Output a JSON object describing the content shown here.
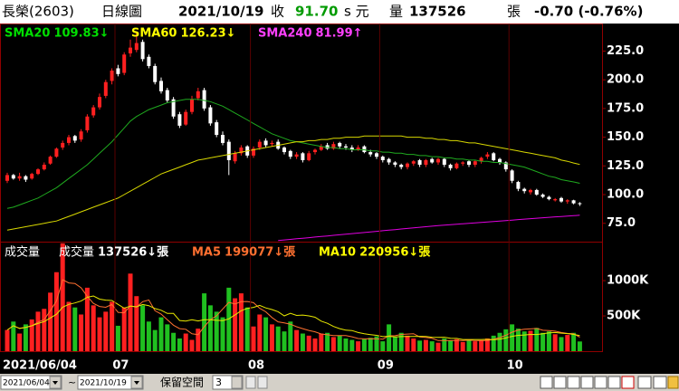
{
  "header": {
    "stock": "長榮(2603)",
    "period": "日線圖",
    "date": "2021/10/19",
    "close_label": "收",
    "close": "91.70",
    "close_suffix": "s 元",
    "volume_label": "量",
    "volume": "137526",
    "volume_unit": "張",
    "change": "-0.70 (-0.76%)"
  },
  "chart_data": [
    {
      "type": "candlestick",
      "up_color": "#ff2020",
      "down_color": "#ffffff",
      "open": [
        112,
        117,
        114,
        116,
        114,
        118,
        122,
        127,
        133,
        141,
        145,
        151,
        148,
        156,
        169,
        176,
        186,
        199,
        210,
        206,
        223,
        226,
        233,
        220,
        212,
        199,
        191,
        183,
        170,
        161,
        172,
        184,
        191,
        176,
        163,
        152,
        146,
        129,
        136,
        142,
        134,
        141,
        147,
        144,
        146,
        141,
        138,
        133,
        136,
        130,
        137,
        139,
        143,
        140,
        145,
        142,
        141,
        139,
        142,
        137,
        136,
        133,
        131,
        128,
        126,
        124,
        127,
        130,
        126,
        131,
        128,
        131,
        126,
        123,
        127,
        129,
        126,
        129,
        133,
        136,
        131,
        128,
        121,
        111,
        105,
        102,
        104,
        100,
        98,
        95,
        97,
        94,
        95,
        92.5
      ],
      "high": [
        119,
        118,
        119,
        117,
        119,
        123,
        128,
        134,
        141,
        147,
        152,
        152,
        157,
        170,
        178,
        188,
        200,
        210,
        213,
        224,
        235,
        241,
        235,
        222,
        214,
        202,
        193,
        185,
        172,
        174,
        186,
        193,
        193,
        178,
        165,
        155,
        148,
        138,
        143,
        143,
        142,
        148,
        149,
        147,
        148,
        142,
        139,
        137,
        137,
        138,
        140,
        144,
        145,
        146,
        146,
        144,
        143,
        143,
        143,
        139,
        137,
        134,
        132,
        129,
        127,
        128,
        130,
        131,
        131,
        132,
        132,
        132,
        127,
        128,
        129,
        130,
        130,
        133,
        137,
        137,
        132,
        129,
        122,
        112,
        106,
        105,
        105,
        101,
        99,
        97,
        98,
        96,
        95.5,
        93.4
      ],
      "low": [
        110,
        113,
        112,
        111,
        113,
        117,
        121,
        126,
        132,
        139,
        143,
        145,
        146,
        154,
        167,
        174,
        184,
        196,
        203,
        204,
        220,
        224,
        216,
        210,
        196,
        188,
        180,
        166,
        158,
        160,
        170,
        182,
        173,
        160,
        150,
        143,
        117,
        127,
        134,
        132,
        132,
        139,
        141,
        142,
        139,
        135,
        131,
        131,
        128,
        129,
        135,
        138,
        139,
        139,
        140,
        139,
        137,
        138,
        136,
        133,
        131,
        128,
        126,
        124,
        122,
        122,
        125,
        124,
        124,
        127,
        126,
        124,
        121,
        122,
        125,
        124,
        124,
        127,
        131,
        129,
        126,
        120,
        110,
        103,
        101,
        100,
        99,
        97,
        95,
        94,
        93,
        92,
        91.5,
        90.1
      ],
      "close": [
        117,
        114,
        116,
        113,
        118,
        122,
        126,
        133,
        140,
        145,
        150,
        147,
        155,
        168,
        176,
        185,
        198,
        208,
        205,
        222,
        228,
        232,
        218,
        212,
        198,
        190,
        182,
        168,
        160,
        172,
        183,
        190,
        175,
        162,
        152,
        145,
        130,
        136,
        141,
        134,
        140,
        146,
        143,
        145,
        140,
        137,
        133,
        135,
        130,
        136,
        139,
        142,
        140,
        144,
        142,
        141,
        139,
        141,
        137,
        135,
        133,
        130,
        128,
        126,
        124,
        127,
        129,
        126,
        130,
        128,
        131,
        126,
        123,
        127,
        128,
        126,
        129,
        132,
        135,
        130,
        128,
        122,
        112,
        105,
        103,
        104,
        100,
        98,
        96,
        96,
        94,
        95,
        92.4,
        91.7
      ],
      "lines": [
        {
          "name": "SMA20",
          "last_label": "109.83↓",
          "color": "#1faa1f",
          "label_color": "#00e000",
          "values": [
            88,
            89,
            91,
            93,
            95,
            97,
            100,
            103,
            106,
            110,
            114,
            118,
            122,
            126,
            131,
            136,
            141,
            146,
            152,
            158,
            164,
            168,
            171,
            174,
            176,
            178,
            180,
            181,
            182,
            183,
            183,
            183,
            182,
            181,
            179,
            177,
            174,
            171,
            168,
            165,
            162,
            159,
            156,
            153,
            151,
            149,
            147,
            146,
            145,
            144,
            143,
            142,
            141,
            141,
            140,
            140,
            139,
            139,
            139,
            138,
            138,
            137,
            137,
            136,
            136,
            135,
            135,
            134,
            134,
            133,
            133,
            132,
            132,
            131,
            131,
            130,
            130,
            129,
            129,
            128,
            128,
            127,
            126,
            125,
            124,
            122,
            120,
            118,
            116,
            115,
            113,
            112,
            111,
            109.83
          ]
        },
        {
          "name": "SMA60",
          "last_label": "126.23↓",
          "color": "#d8d800",
          "label_color": "#ffff00",
          "values": [
            69,
            70,
            71,
            72,
            73,
            74,
            75,
            76,
            77,
            79,
            81,
            83,
            85,
            87,
            89,
            91,
            93,
            95,
            97,
            100,
            103,
            106,
            109,
            112,
            115,
            118,
            120,
            122,
            124,
            126,
            128,
            130,
            131,
            132,
            133,
            134,
            135,
            136,
            137,
            138,
            139,
            140,
            141,
            142,
            143,
            144,
            145,
            146,
            146,
            147,
            147,
            148,
            148,
            149,
            149,
            150,
            150,
            150,
            151,
            151,
            151,
            151,
            151,
            151,
            151,
            150,
            150,
            150,
            149,
            149,
            148,
            148,
            147,
            147,
            146,
            145,
            145,
            144,
            143,
            142,
            141,
            140,
            139,
            138,
            137,
            136,
            135,
            134,
            133,
            132,
            130,
            129,
            127.5,
            126.23
          ]
        },
        {
          "name": "SMA240",
          "last_label": "81.99↑",
          "color": "#e000e0",
          "label_color": "#ff40ff",
          "values": [
            null,
            null,
            null,
            null,
            null,
            null,
            null,
            null,
            null,
            null,
            null,
            null,
            null,
            null,
            null,
            null,
            null,
            null,
            null,
            null,
            null,
            null,
            null,
            null,
            null,
            null,
            null,
            null,
            null,
            null,
            null,
            null,
            null,
            null,
            null,
            null,
            null,
            null,
            null,
            null,
            null,
            null,
            null,
            null,
            60,
            60.5,
            61,
            61.5,
            62,
            62.5,
            63,
            63.5,
            64,
            64.5,
            65,
            65.5,
            66,
            66.5,
            67,
            67.5,
            68,
            68.5,
            69,
            69.5,
            70,
            70.5,
            71,
            71.5,
            72,
            72.5,
            73,
            73.4,
            73.8,
            74.2,
            74.6,
            75,
            75.4,
            75.8,
            76.2,
            76.6,
            77,
            77.4,
            77.8,
            78.2,
            78.6,
            79,
            79.4,
            79.8,
            80.2,
            80.6,
            80.9,
            81.2,
            81.6,
            81.99
          ]
        }
      ],
      "ylim": [
        59,
        249
      ],
      "yticks": [
        {
          "value": 75,
          "label": "75.0"
        },
        {
          "value": 100,
          "label": "100.0"
        },
        {
          "value": 125,
          "label": "125.0"
        },
        {
          "value": 150,
          "label": "150.0"
        },
        {
          "value": 175,
          "label": "175.0"
        },
        {
          "value": 200,
          "label": "200.0"
        },
        {
          "value": 225,
          "label": "225.0"
        }
      ]
    },
    {
      "type": "bar",
      "title": "成交量",
      "name": "成交量",
      "legend_label": "137526↓張",
      "up_color": "#ff2020",
      "down_color": "#20c020",
      "categories": [
        "2021/06/04",
        null,
        null,
        null,
        null,
        null,
        null,
        null,
        null,
        null,
        null,
        null,
        null,
        null,
        null,
        null,
        null,
        null,
        "07",
        null,
        null,
        null,
        null,
        null,
        null,
        null,
        null,
        null,
        null,
        null,
        null,
        null,
        null,
        null,
        null,
        null,
        null,
        null,
        null,
        null,
        "08",
        null,
        null,
        null,
        null,
        null,
        null,
        null,
        null,
        null,
        null,
        null,
        null,
        null,
        null,
        null,
        null,
        null,
        null,
        null,
        null,
        "09",
        null,
        null,
        null,
        null,
        null,
        null,
        null,
        null,
        null,
        null,
        null,
        null,
        null,
        null,
        null,
        null,
        null,
        null,
        null,
        null,
        "10",
        null,
        null,
        null,
        null,
        null,
        null,
        null,
        null,
        null,
        null,
        null
      ],
      "values": [
        300000,
        420000,
        250000,
        380000,
        450000,
        560000,
        600000,
        830000,
        1120000,
        1530000,
        700000,
        620000,
        520000,
        900000,
        650000,
        480000,
        560000,
        700000,
        360000,
        620000,
        1100000,
        780000,
        650000,
        420000,
        300000,
        480000,
        380000,
        260000,
        180000,
        250000,
        160000,
        320000,
        820000,
        650000,
        560000,
        480000,
        900000,
        750000,
        820000,
        620000,
        350000,
        520000,
        480000,
        380000,
        350000,
        280000,
        420000,
        300000,
        250000,
        220000,
        180000,
        250000,
        260000,
        200000,
        220000,
        180000,
        160000,
        140000,
        170000,
        190000,
        210000,
        140000,
        380000,
        200000,
        260000,
        220000,
        180000,
        150000,
        160000,
        140000,
        120000,
        180000,
        150000,
        170000,
        130000,
        160000,
        140000,
        150000,
        180000,
        220000,
        260000,
        310000,
        380000,
        320000,
        280000,
        290000,
        330000,
        260000,
        280000,
        240000,
        200000,
        230000,
        260000,
        137526
      ],
      "lines": [
        {
          "name": "MA5",
          "last_label": "199077↓張",
          "color": "#ff7030",
          "label_color": "#ff7030",
          "values": [
            300000,
            360000,
            323000,
            338000,
            360000,
            412000,
            448000,
            574000,
            712000,
            1014000,
            968000,
            960000,
            898000,
            778000,
            678000,
            634000,
            622000,
            662000,
            550000,
            544000,
            644000,
            624000,
            702000,
            726000,
            574000,
            526000,
            446000,
            368000,
            320000,
            310000,
            246000,
            234000,
            346000,
            446000,
            502000,
            598000,
            692000,
            668000,
            702000,
            704000,
            688000,
            608000,
            558000,
            478000,
            416000,
            402000,
            382000,
            346000,
            320000,
            294000,
            274000,
            244000,
            232000,
            222000,
            222000,
            222000,
            204000,
            180000,
            174000,
            176000,
            174000,
            170000,
            218000,
            220000,
            238000,
            242000,
            248000,
            202000,
            194000,
            182000,
            150000,
            150000,
            150000,
            152000,
            150000,
            158000,
            150000,
            150000,
            152000,
            170000,
            192000,
            226000,
            270000,
            298000,
            310000,
            316000,
            322000,
            296000,
            292000,
            284000,
            264000,
            252000,
            246000,
            199077
          ]
        },
        {
          "name": "MA10",
          "last_label": "220956↓張",
          "color": "#e8e800",
          "label_color": "#ffff00",
          "values": [
            300000,
            360000,
            323000,
            338000,
            360000,
            393000,
            420000,
            471000,
            523000,
            624000,
            664000,
            684000,
            711000,
            763000,
            783000,
            738000,
            724000,
            719000,
            663000,
            610000,
            639000,
            629000,
            662000,
            645000,
            604000,
            580000,
            535000,
            535000,
            435000,
            427000,
            445000,
            429000,
            446000,
            447000,
            438000,
            434000,
            458000,
            514000,
            574000,
            607000,
            621000,
            650000,
            613000,
            590000,
            560000,
            500000,
            537000,
            507000,
            512000,
            500000,
            481000,
            426000,
            395000,
            350000,
            319000,
            298000,
            293000,
            264000,
            247000,
            235000,
            224000,
            207000,
            211000,
            201000,
            206000,
            209000,
            209000,
            210000,
            209000,
            197000,
            196000,
            198000,
            184000,
            181000,
            166000,
            166000,
            165000,
            166000,
            168000,
            162000,
            171000,
            188000,
            210000,
            225000,
            230000,
            237000,
            236000,
            248000,
            261000,
            264000,
            255000,
            249000,
            237000,
            220956
          ]
        }
      ],
      "ylim": [
        0,
        1540000
      ],
      "yticks": [
        {
          "value": 500000,
          "label": "500K"
        },
        {
          "value": 1000000,
          "label": "1000K"
        }
      ]
    }
  ],
  "toolbar": {
    "start": "2021/06/04",
    "separator": "~",
    "end": "2021/10/19",
    "reserve_label": "保留空間",
    "reserve": "3"
  }
}
